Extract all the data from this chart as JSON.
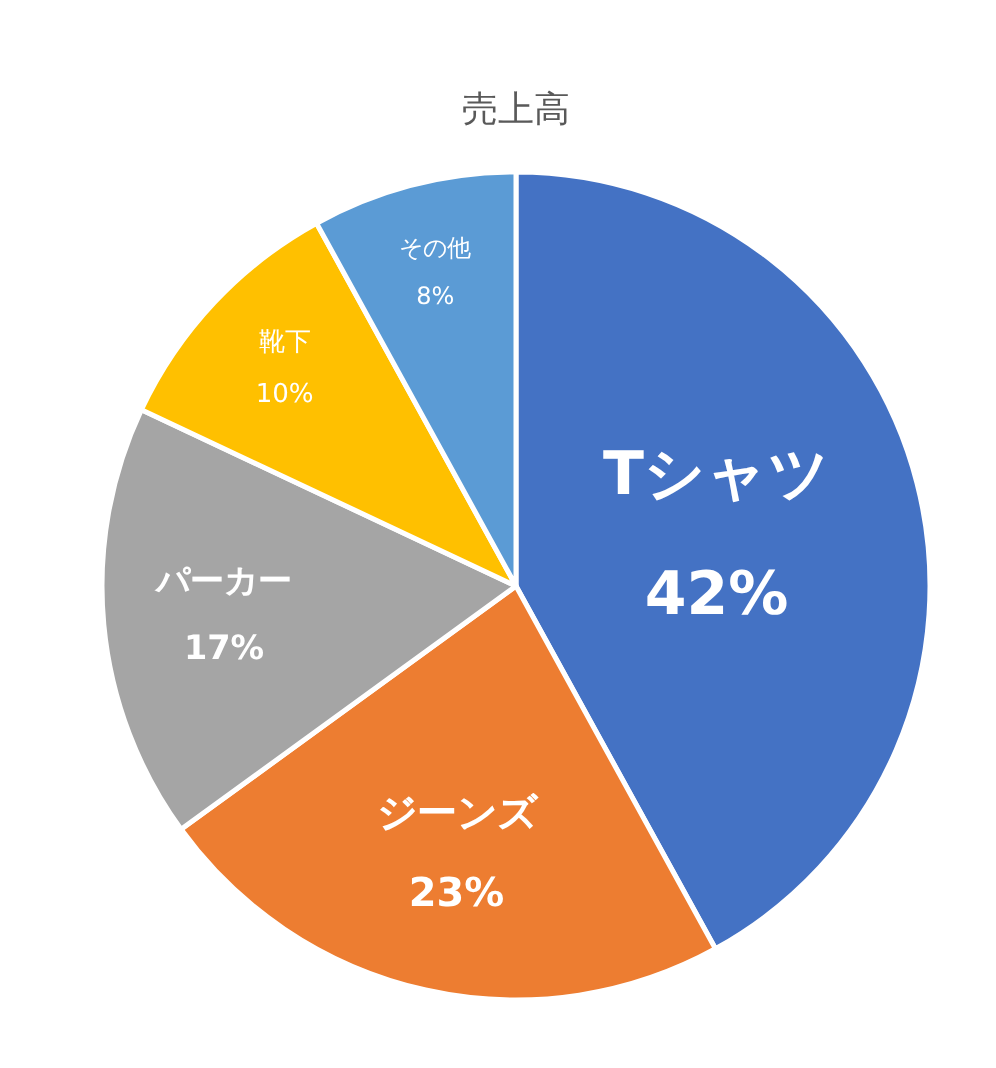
{
  "chart_data": {
    "type": "pie",
    "title": "売上高",
    "categories": [
      "Tシャツ",
      "ジーンズ",
      "パーカー",
      "靴下",
      "その他"
    ],
    "values": [
      42,
      23,
      17,
      10,
      8
    ],
    "colors": [
      "#4472c4",
      "#ed7d31",
      "#a5a5a5",
      "#ffc000",
      "#5b9bd5"
    ],
    "value_labels": [
      "42%",
      "23%",
      "17%",
      "10%",
      "8%"
    ]
  }
}
